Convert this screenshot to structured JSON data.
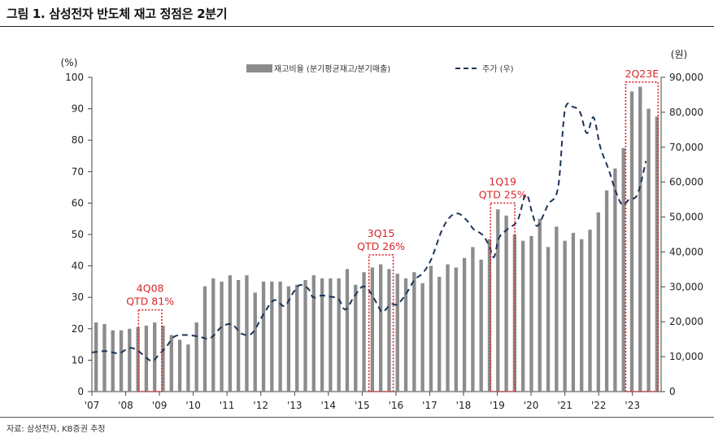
{
  "header": {
    "title": "그림 1. 삼성전자 반도체 재고 정점은 2분기"
  },
  "footer": {
    "source": "자료: 삼성전자, KB증권 추정"
  },
  "colors": {
    "bar": "#8c8c8c",
    "line": "#1c3559",
    "annotation": "#d9262a",
    "axis": "#444444"
  },
  "chart_data": {
    "type": "bar",
    "title": "",
    "ylabel_left": "(%)",
    "ylabel_right": "(원)",
    "ylim_left": [
      0,
      100
    ],
    "ylim_right": [
      0,
      90000
    ],
    "yticks_left": [
      0,
      10,
      20,
      30,
      40,
      50,
      60,
      70,
      80,
      90,
      100
    ],
    "yticks_right": [
      "0",
      "10,000",
      "20,000",
      "30,000",
      "40,000",
      "50,000",
      "60,000",
      "70,000",
      "80,000",
      "90,000"
    ],
    "xticks": [
      "'07",
      "'08",
      "'09",
      "'10",
      "'11",
      "'12",
      "'13",
      "'14",
      "'15",
      "'16",
      "'17",
      "'18",
      "'19",
      "'20",
      "'21",
      "'22",
      "'23"
    ],
    "legend": {
      "placement": "top-center",
      "bar_label": "재고비율 (분기평균재고/분기매출)",
      "line_label": "주가 (우)"
    },
    "series": [
      {
        "name": "재고비율 (분기평균재고/분기매출)",
        "axis": "left",
        "kind": "bar",
        "values": [
          22,
          21.5,
          19.5,
          19.5,
          20,
          20.5,
          21,
          22,
          21,
          18,
          16.5,
          15,
          22,
          33.5,
          36,
          35,
          37,
          35.5,
          37,
          31.5,
          35,
          35,
          35,
          33.5,
          34,
          35.5,
          37,
          36,
          36,
          36,
          39,
          34,
          38,
          39.5,
          40.5,
          39,
          37.5,
          36,
          38,
          34.5,
          40,
          36.5,
          40.5,
          39.5,
          42.5,
          46,
          42,
          48.5,
          58,
          56,
          50,
          48,
          49.5,
          55,
          46,
          52.5,
          48,
          50.5,
          48.5,
          51.5,
          57,
          64,
          71,
          77.5,
          95.5,
          97,
          90,
          87.5
        ]
      },
      {
        "name": "주가 (우)",
        "axis": "right",
        "kind": "line",
        "points": [
          [
            2007.0,
            11200
          ],
          [
            2007.4,
            11600
          ],
          [
            2007.8,
            11000
          ],
          [
            2008.1,
            12500
          ],
          [
            2008.35,
            11800
          ],
          [
            2008.75,
            8800
          ],
          [
            2008.95,
            10200
          ],
          [
            2009.2,
            12800
          ],
          [
            2009.45,
            15800
          ],
          [
            2009.8,
            16200
          ],
          [
            2010.15,
            15800
          ],
          [
            2010.5,
            15300
          ],
          [
            2010.85,
            18600
          ],
          [
            2011.15,
            19200
          ],
          [
            2011.45,
            16500
          ],
          [
            2011.75,
            16800
          ],
          [
            2012.1,
            22500
          ],
          [
            2012.4,
            26200
          ],
          [
            2012.7,
            24500
          ],
          [
            2012.95,
            28200
          ],
          [
            2013.15,
            30500
          ],
          [
            2013.4,
            29500
          ],
          [
            2013.55,
            27000
          ],
          [
            2013.8,
            27500
          ],
          [
            2014.05,
            27200
          ],
          [
            2014.3,
            26500
          ],
          [
            2014.5,
            23500
          ],
          [
            2014.75,
            27000
          ],
          [
            2015.0,
            30000
          ],
          [
            2015.2,
            29000
          ],
          [
            2015.45,
            25000
          ],
          [
            2015.6,
            22800
          ],
          [
            2015.85,
            25000
          ],
          [
            2016.05,
            25000
          ],
          [
            2016.3,
            28000
          ],
          [
            2016.55,
            32000
          ],
          [
            2016.8,
            34000
          ],
          [
            2017.05,
            38000
          ],
          [
            2017.35,
            46000
          ],
          [
            2017.6,
            50000
          ],
          [
            2017.85,
            51000
          ],
          [
            2018.1,
            49000
          ],
          [
            2018.3,
            46500
          ],
          [
            2018.55,
            45000
          ],
          [
            2018.75,
            42000
          ],
          [
            2018.9,
            38500
          ],
          [
            2019.05,
            44000
          ],
          [
            2019.3,
            46500
          ],
          [
            2019.6,
            49000
          ],
          [
            2019.85,
            56500
          ],
          [
            2020.05,
            50500
          ],
          [
            2020.2,
            47500
          ],
          [
            2020.5,
            53500
          ],
          [
            2020.8,
            58500
          ],
          [
            2021.0,
            80500
          ],
          [
            2021.25,
            81500
          ],
          [
            2021.45,
            80000
          ],
          [
            2021.65,
            74000
          ],
          [
            2021.85,
            78500
          ],
          [
            2022.05,
            70000
          ],
          [
            2022.3,
            63500
          ],
          [
            2022.5,
            57500
          ],
          [
            2022.7,
            53500
          ],
          [
            2022.9,
            55000
          ],
          [
            2023.15,
            56500
          ],
          [
            2023.4,
            66000
          ]
        ]
      }
    ],
    "annotations": [
      {
        "label_top": "4Q08",
        "label_bottom": "QTD 81%",
        "x_start": 2008.38,
        "x_end": 2009.07,
        "y_top": 26
      },
      {
        "label_top": "3Q15",
        "label_bottom": "QTD 26%",
        "x_start": 2015.2,
        "x_end": 2015.92,
        "y_top": 43.5
      },
      {
        "label_top": "1Q19",
        "label_bottom": "QTD 25%",
        "x_start": 2018.8,
        "x_end": 2019.52,
        "y_top": 60
      },
      {
        "label_top": "2Q23E",
        "label_bottom": "",
        "x_start": 2022.8,
        "x_end": 2023.76,
        "y_top": 98.5
      }
    ]
  }
}
